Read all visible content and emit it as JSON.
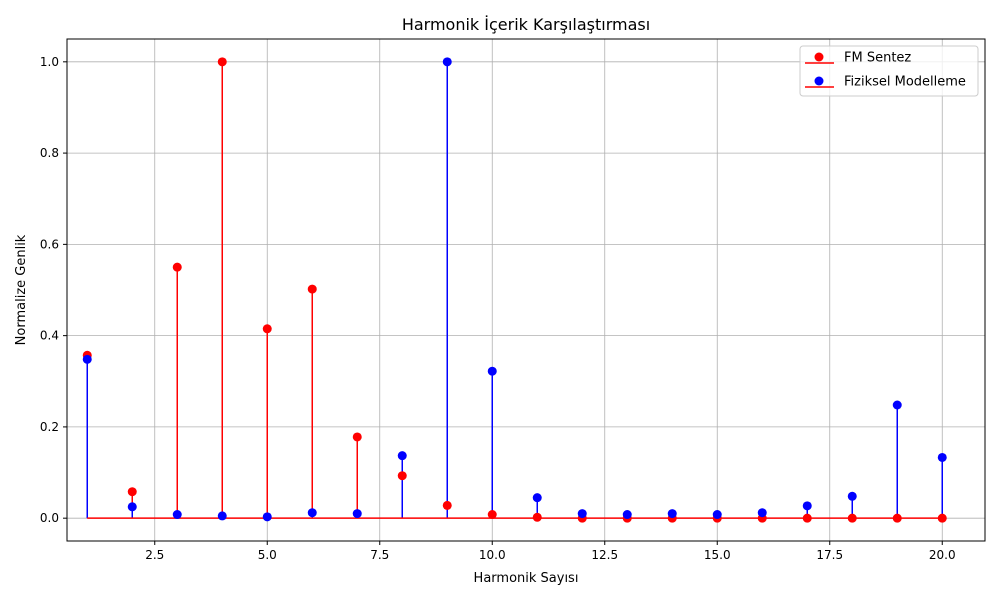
{
  "chart_data": {
    "type": "stem",
    "title": "Harmonik İçerik Karşılaştırması",
    "xlabel": "Harmonik Sayısı",
    "ylabel": "Normalize Genlik",
    "xlim": [
      0.55,
      20.95
    ],
    "ylim": [
      -0.05,
      1.05
    ],
    "x_ticks": [
      2.5,
      5.0,
      7.5,
      10.0,
      12.5,
      15.0,
      17.5,
      20.0
    ],
    "x_tick_labels": [
      "2.5",
      "5.0",
      "7.5",
      "10.0",
      "12.5",
      "15.0",
      "17.5",
      "20.0"
    ],
    "y_ticks": [
      0.0,
      0.2,
      0.4,
      0.6,
      0.8,
      1.0
    ],
    "y_tick_labels": [
      "0.0",
      "0.2",
      "0.4",
      "0.6",
      "0.8",
      "1.0"
    ],
    "grid": true,
    "legend_position": "top-right",
    "x": [
      1,
      2,
      3,
      4,
      5,
      6,
      7,
      8,
      9,
      10,
      11,
      12,
      13,
      14,
      15,
      16,
      17,
      18,
      19,
      20
    ],
    "series": [
      {
        "name": "FM Sentez",
        "color": "#ff0000",
        "values": [
          0.357,
          0.058,
          0.55,
          1.0,
          0.415,
          0.502,
          0.178,
          0.093,
          0.028,
          0.008,
          0.002,
          0.0,
          0.0,
          0.0,
          0.0,
          0.0,
          0.0,
          0.0,
          0.0,
          0.0
        ]
      },
      {
        "name": "Fiziksel Modelleme",
        "color": "#0000ff",
        "values": [
          0.348,
          0.025,
          0.008,
          0.005,
          0.003,
          0.012,
          0.01,
          0.137,
          1.0,
          0.322,
          0.045,
          0.01,
          0.008,
          0.01,
          0.008,
          0.012,
          0.027,
          0.048,
          0.248,
          0.133
        ]
      }
    ],
    "baseline": {
      "value": 0.0,
      "color": "#ff0000"
    }
  }
}
